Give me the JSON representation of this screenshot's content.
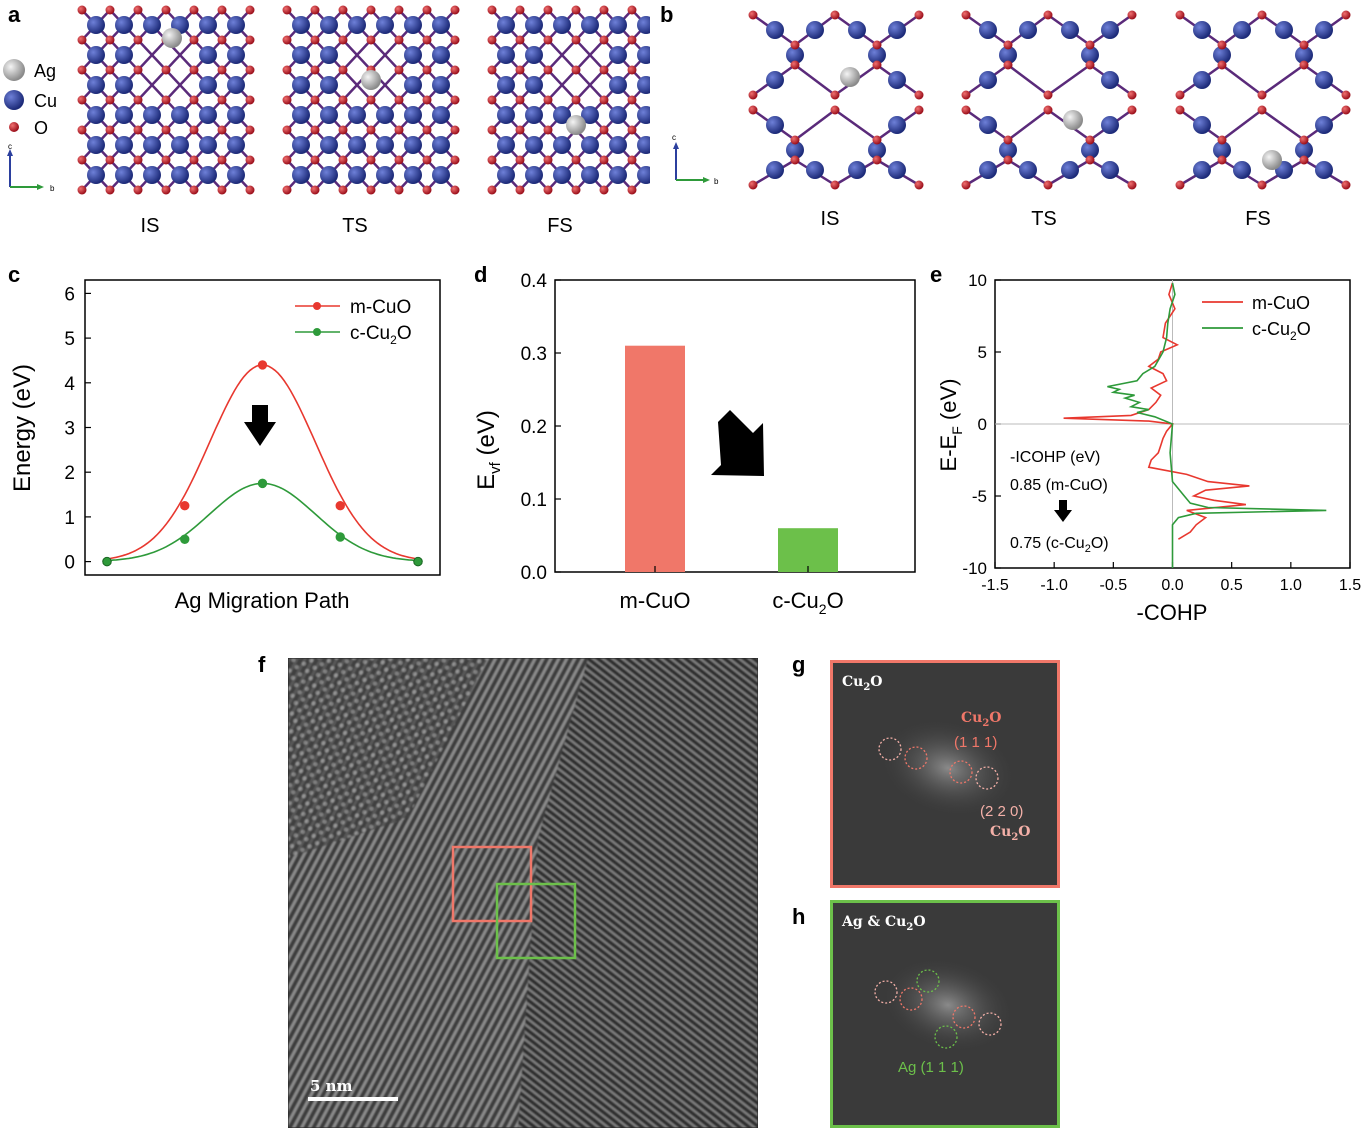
{
  "panels": {
    "a": {
      "label": "a",
      "states": [
        "IS",
        "TS",
        "FS"
      ]
    },
    "b": {
      "label": "b",
      "states": [
        "IS",
        "TS",
        "FS"
      ]
    },
    "c": {
      "label": "c"
    },
    "d": {
      "label": "d"
    },
    "e": {
      "label": "e"
    },
    "f": {
      "label": "f",
      "scalebar": "5 nm"
    },
    "g": {
      "label": "g",
      "title_main": "Cu",
      "title_sub": "2",
      "title_end": "O",
      "spot1_main": "Cu",
      "spot1_sub": "2",
      "spot1_end": "O",
      "spot1_hkl": "(1 1 1)",
      "spot2_hkl": "(2 2 0)",
      "spot2_main": "Cu",
      "spot2_sub": "2",
      "spot2_end": "O"
    },
    "h": {
      "label": "h",
      "title_main": "Ag & Cu",
      "title_sub": "2",
      "title_end": "O",
      "spot_label": "Ag (1 1 1)"
    }
  },
  "legend_atoms": {
    "ag": "Ag",
    "cu": "Cu",
    "o": "O"
  },
  "axes_triad": {
    "c": "c",
    "b": "b"
  },
  "colors": {
    "red": "#e8382f",
    "green": "#2e9a3a",
    "bar_red": "#f07769",
    "bar_green": "#6cc04a",
    "cu": "#2b3f9e",
    "o": "#c0182a",
    "ag": "#a8a8a8",
    "box_red": "#f07769",
    "box_green": "#6cc04a"
  },
  "chart_data": [
    {
      "type": "line",
      "panel": "c",
      "ylabel": "Energy (eV)",
      "xlabel": "Ag Migration Path",
      "ylim": [
        -0.3,
        6.3
      ],
      "yticks": [
        "0",
        "1",
        "2",
        "3",
        "4",
        "5",
        "6"
      ],
      "series": [
        {
          "name_main": "m-CuO",
          "name_sub": "",
          "name_end": "",
          "values": [
            0,
            1.25,
            4.4,
            1.25,
            0
          ]
        },
        {
          "name_main": "c-Cu",
          "name_sub": "2",
          "name_end": "O",
          "values": [
            0,
            0.5,
            1.75,
            0.55,
            0
          ]
        }
      ],
      "x": [
        0,
        0.25,
        0.5,
        0.75,
        1.0
      ]
    },
    {
      "type": "bar",
      "panel": "d",
      "ylabel_main": "E",
      "ylabel_sub": "vf",
      "ylabel_end": " (eV)",
      "ylim": [
        0,
        0.4
      ],
      "yticks": [
        "0.0",
        "0.1",
        "0.2",
        "0.3",
        "0.4"
      ],
      "categories": [
        {
          "main": "m-CuO",
          "sub": "",
          "end": ""
        },
        {
          "main": "c-Cu",
          "sub": "2",
          "end": "O"
        }
      ],
      "values": [
        0.31,
        0.06
      ]
    },
    {
      "type": "line",
      "panel": "e",
      "xlabel": "-COHP",
      "ylabel_main": "E-E",
      "ylabel_sub": "F",
      "ylabel_end": " (eV)",
      "xlim": [
        -1.5,
        1.5
      ],
      "ylim": [
        -10,
        10
      ],
      "xticks": [
        "-1.5",
        "-1.0",
        "-0.5",
        "0.0",
        "0.5",
        "1.0",
        "1.5"
      ],
      "yticks": [
        "10",
        "5",
        "0",
        "-5",
        "-10"
      ],
      "annotation": {
        "title": "-ICOHP (eV)",
        "line1": "0.85 (m-CuO)",
        "line2_main": "0.75 (c-Cu",
        "line2_sub": "2",
        "line2_end": "O)"
      },
      "series": [
        {
          "name_main": "m-CuO",
          "name_sub": "",
          "name_end": "",
          "y": [
            9.8,
            9,
            8,
            7,
            6,
            5.5,
            5,
            4.5,
            4,
            3.5,
            3,
            2.5,
            2,
            1.5,
            1,
            0.6,
            0.4,
            0.2,
            0,
            -0.5,
            -1,
            -1.5,
            -2,
            -2.5,
            -3,
            -3.5,
            -4,
            -4.3,
            -4.6,
            -5,
            -5.3,
            -5.6,
            -6,
            -6.5,
            -7,
            -7.5,
            -8
          ],
          "x": [
            0,
            -0.03,
            0.02,
            -0.06,
            -0.08,
            0.04,
            -0.1,
            -0.12,
            -0.2,
            -0.08,
            -0.05,
            -0.18,
            -0.1,
            -0.14,
            -0.2,
            -0.35,
            -0.92,
            -0.2,
            0,
            -0.05,
            -0.08,
            -0.1,
            -0.12,
            -0.18,
            -0.2,
            0.12,
            0.3,
            0.65,
            0.28,
            0.18,
            0.35,
            0.62,
            0.12,
            0.28,
            0.2,
            0.15,
            0.05
          ]
        },
        {
          "name_main": "c-Cu",
          "name_sub": "2",
          "name_end": "O",
          "y": [
            9.8,
            9,
            8,
            7,
            6,
            5,
            4,
            3.5,
            3,
            2.6,
            2.4,
            2.2,
            2,
            1.8,
            1.5,
            1.2,
            1,
            0.8,
            0.5,
            0,
            -2,
            -4,
            -5,
            -5.5,
            -5.8,
            -6,
            -6.2,
            -6.5,
            -7,
            -7.5,
            -8,
            -9,
            -10
          ],
          "x": [
            0,
            0.02,
            -0.02,
            -0.04,
            -0.05,
            -0.08,
            -0.15,
            -0.25,
            -0.3,
            -0.55,
            -0.45,
            -0.5,
            -0.32,
            -0.4,
            -0.28,
            -0.35,
            -0.2,
            -0.3,
            -0.15,
            0,
            -0.02,
            0,
            0.1,
            0.15,
            0.3,
            1.3,
            0.2,
            0.05,
            0,
            0,
            0,
            0,
            0
          ]
        }
      ]
    }
  ]
}
